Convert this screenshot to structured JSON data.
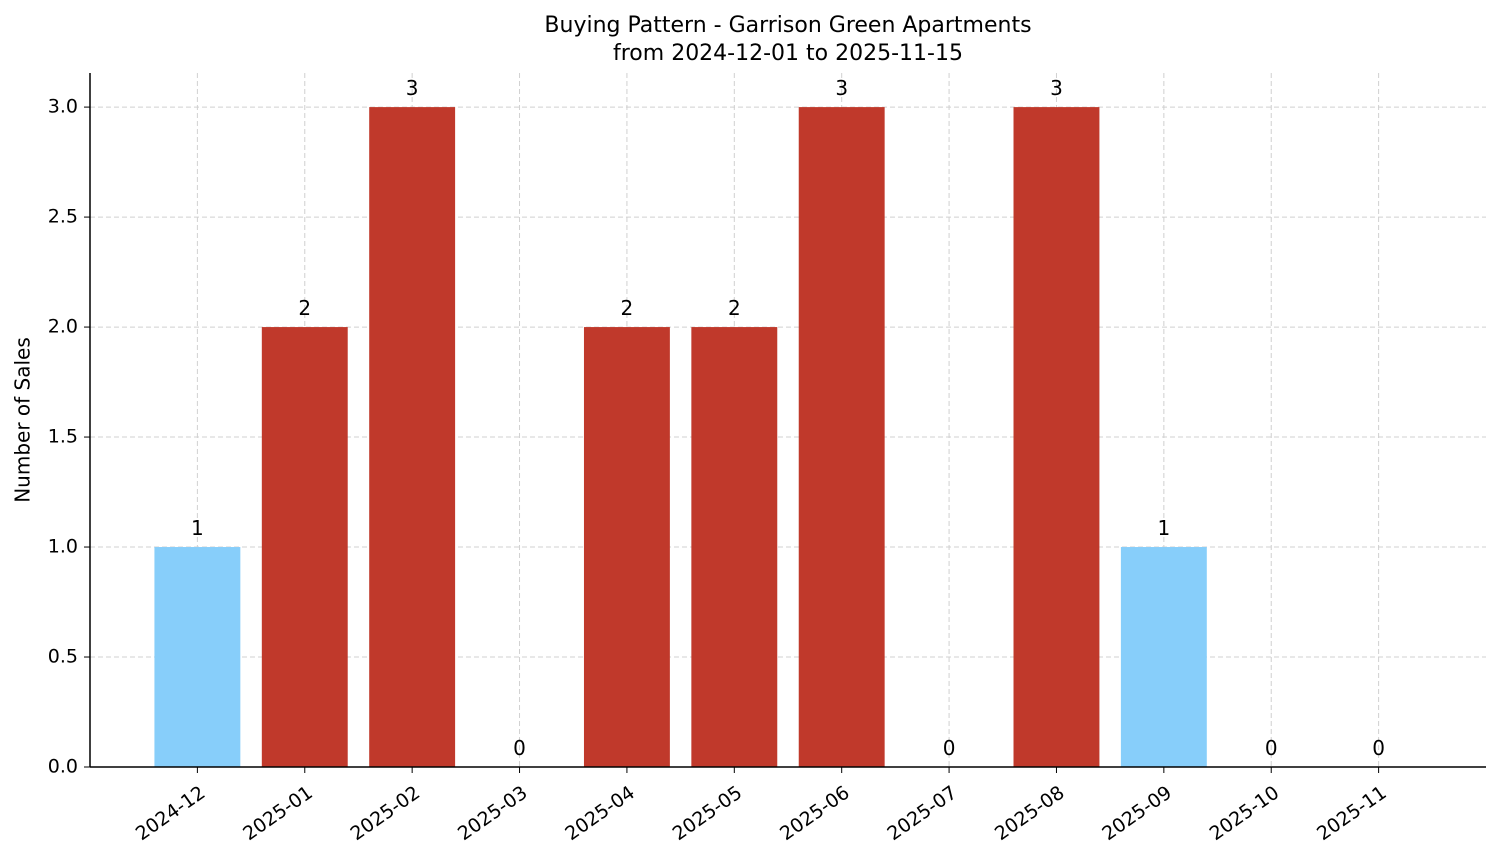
{
  "chart_data": {
    "type": "bar",
    "title": "Buying Pattern - Garrison Green Apartments",
    "subtitle": "from 2024-12-01 to 2025-11-15",
    "y_label": "Number of Sales",
    "categories": [
      "2024-12",
      "2025-01",
      "2025-02",
      "2025-03",
      "2025-04",
      "2025-05",
      "2025-06",
      "2025-07",
      "2025-08",
      "2025-09",
      "2025-10",
      "2025-11"
    ],
    "values": [
      1,
      2,
      3,
      0,
      2,
      2,
      3,
      0,
      3,
      1,
      0,
      0
    ],
    "colors": [
      "#87cefa",
      "#c0392b",
      "#c0392b",
      "#c0392b",
      "#c0392b",
      "#c0392b",
      "#c0392b",
      "#c0392b",
      "#c0392b",
      "#87cefa",
      "#c0392b",
      "#c0392b"
    ],
    "ylim": [
      0,
      3.155
    ],
    "yticks": [
      {
        "value": 0,
        "label": "0.0"
      },
      {
        "value": 0.5,
        "label": "0.5"
      },
      {
        "value": 1,
        "label": "1.0"
      },
      {
        "value": 1.5,
        "label": "1.5"
      },
      {
        "value": 2,
        "label": "2.0"
      },
      {
        "value": 2.5,
        "label": "2.5"
      },
      {
        "value": 3,
        "label": "3.0"
      }
    ],
    "grid": true
  }
}
